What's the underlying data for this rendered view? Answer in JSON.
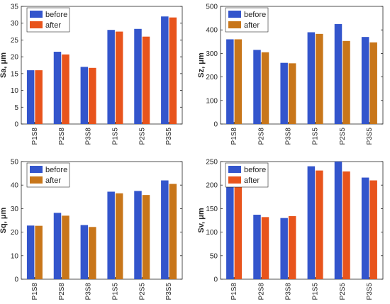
{
  "colors": {
    "before": "#3355CC",
    "after_a": "#E8541C",
    "after_b": "#C8761A"
  },
  "chart_data": [
    {
      "type": "bar",
      "ylabel": "Sa, μm",
      "ylim": [
        0,
        35
      ],
      "yticks": [
        0,
        5,
        10,
        15,
        20,
        25,
        30,
        35
      ],
      "categories": [
        "P1S8",
        "P2S8",
        "P3S8",
        "P1S5",
        "P2S5",
        "P3S5"
      ],
      "legend": "top-left",
      "series": [
        {
          "name": "before",
          "values": [
            16,
            21.5,
            17,
            28,
            28.3,
            32
          ]
        },
        {
          "name": "after",
          "values": [
            16,
            20.7,
            16.7,
            27.5,
            26,
            31.7
          ]
        }
      ]
    },
    {
      "type": "bar",
      "ylabel": "Sz, μm",
      "ylim": [
        0,
        500
      ],
      "yticks": [
        0,
        100,
        200,
        300,
        400,
        500
      ],
      "categories": [
        "P1S8",
        "P2S8",
        "P3S8",
        "P1S5",
        "P2S5",
        "P3S5"
      ],
      "legend": "top-left",
      "series": [
        {
          "name": "before",
          "values": [
            360,
            315,
            260,
            390,
            425,
            370
          ]
        },
        {
          "name": "after",
          "values": [
            360,
            305,
            258,
            383,
            353,
            347
          ]
        }
      ]
    },
    {
      "type": "bar",
      "ylabel": "Sq, μm",
      "ylim": [
        0,
        50
      ],
      "yticks": [
        0,
        10,
        20,
        30,
        40,
        50
      ],
      "categories": [
        "P1S8",
        "P2S8",
        "P3S8",
        "P1S5",
        "P2S5",
        "P3S5"
      ],
      "legend": "top-left",
      "series": [
        {
          "name": "before",
          "values": [
            22.8,
            28.2,
            23,
            37.2,
            37.5,
            42
          ]
        },
        {
          "name": "after",
          "values": [
            22.7,
            27,
            22.2,
            36.5,
            35.8,
            40.5
          ]
        }
      ]
    },
    {
      "type": "bar",
      "ylabel": "Sv, μm",
      "ylim": [
        0,
        250
      ],
      "yticks": [
        0,
        50,
        100,
        150,
        200,
        250
      ],
      "categories": [
        "P1S8",
        "P2S8",
        "P3S8",
        "P1S5",
        "P2S5",
        "P3S5"
      ],
      "legend": "top-left",
      "series": [
        {
          "name": "before",
          "values": [
            203,
            137,
            130,
            240,
            250,
            216
          ]
        },
        {
          "name": "after",
          "values": [
            197,
            132,
            134,
            231,
            229,
            210
          ]
        }
      ]
    }
  ]
}
